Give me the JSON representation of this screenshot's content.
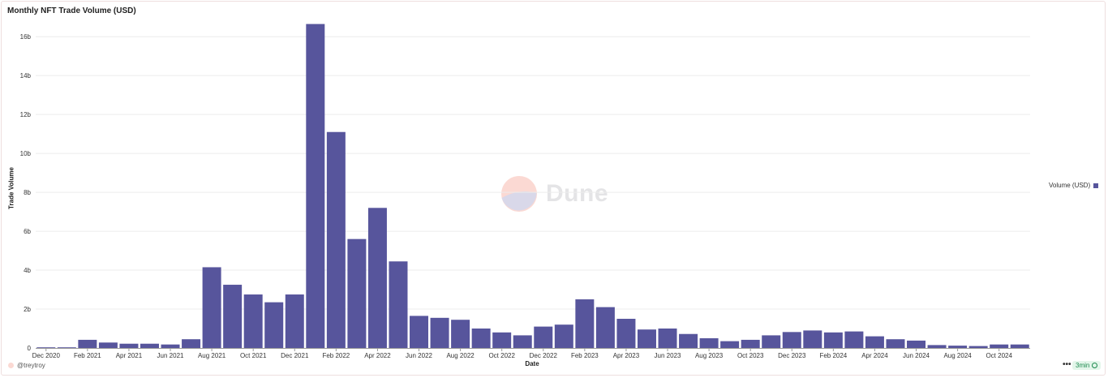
{
  "chart_data": {
    "type": "bar",
    "title": "Monthly NFT Trade Volume (USD)",
    "xlabel": "Date",
    "ylabel": "Trade Volume",
    "ylim": [
      0,
      16.8
    ],
    "y_unit": "b",
    "yticks": [
      0,
      2,
      4,
      6,
      8,
      10,
      12,
      14,
      16
    ],
    "ytick_labels": [
      "0",
      "2b",
      "4b",
      "6b",
      "8b",
      "10b",
      "12b",
      "14b",
      "16b"
    ],
    "grid": true,
    "legend_position": "right",
    "categories": [
      "2020-12",
      "2021-01",
      "2021-02",
      "2021-03",
      "2021-04",
      "2021-05",
      "2021-06",
      "2021-07",
      "2021-08",
      "2021-09",
      "2021-10",
      "2021-11",
      "2021-12",
      "2022-01",
      "2022-02",
      "2022-03",
      "2022-04",
      "2022-05",
      "2022-06",
      "2022-07",
      "2022-08",
      "2022-09",
      "2022-10",
      "2022-11",
      "2022-12",
      "2023-01",
      "2023-02",
      "2023-03",
      "2023-04",
      "2023-05",
      "2023-06",
      "2023-07",
      "2023-08",
      "2023-09",
      "2023-10",
      "2023-11",
      "2023-12",
      "2024-01",
      "2024-02",
      "2024-03",
      "2024-04",
      "2024-05",
      "2024-06",
      "2024-07",
      "2024-08",
      "2024-09",
      "2024-10",
      "2024-11"
    ],
    "xtick_labels": [
      "Dec 2020",
      "",
      "Feb 2021",
      "",
      "Apr 2021",
      "",
      "Jun 2021",
      "",
      "Aug 2021",
      "",
      "Oct 2021",
      "",
      "Dec 2021",
      "",
      "Feb 2022",
      "",
      "Apr 2022",
      "",
      "Jun 2022",
      "",
      "Aug 2022",
      "",
      "Oct 2022",
      "",
      "Dec 2022",
      "",
      "Feb 2023",
      "",
      "Apr 2023",
      "",
      "Jun 2023",
      "",
      "Aug 2023",
      "",
      "Oct 2023",
      "",
      "Dec 2023",
      "",
      "Feb 2024",
      "",
      "Apr 2024",
      "",
      "Jun 2024",
      "",
      "Aug 2024",
      "",
      "Oct 2024",
      ""
    ],
    "series": [
      {
        "name": "Volume (USD)",
        "color": "#57559c",
        "values": [
          0.02,
          0.02,
          0.42,
          0.28,
          0.22,
          0.22,
          0.18,
          0.45,
          4.15,
          3.25,
          2.75,
          2.35,
          2.75,
          16.65,
          11.1,
          5.6,
          7.2,
          4.45,
          1.65,
          1.55,
          1.45,
          1.0,
          0.8,
          0.65,
          1.1,
          1.2,
          2.5,
          2.1,
          1.5,
          0.95,
          1.0,
          0.72,
          0.5,
          0.35,
          0.42,
          0.65,
          0.82,
          0.9,
          0.8,
          0.85,
          0.6,
          0.45,
          0.38,
          0.15,
          0.12,
          0.1,
          0.18,
          0.18
        ]
      }
    ]
  },
  "watermark": {
    "text": "Dune"
  },
  "footer": {
    "author": "@treytroy",
    "more_label": "•••",
    "age_label": "3min"
  }
}
